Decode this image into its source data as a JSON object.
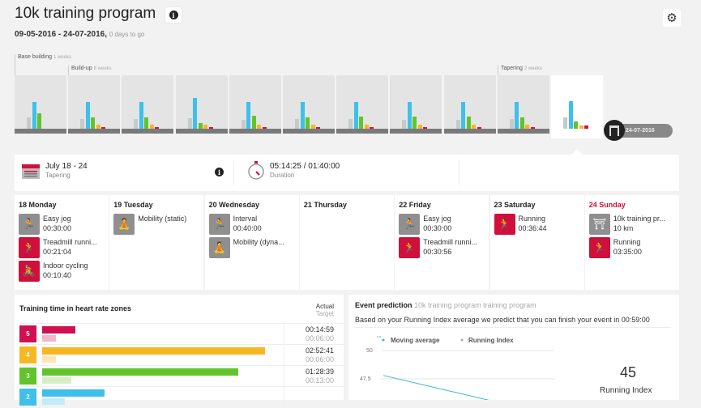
{
  "header": {
    "title": "10k training program",
    "date_range": "09-05-2016 - 24-07-2016,",
    "days_to_go": "0 days to go",
    "info_icon": "info-icon",
    "settings_icon": "gear-icon"
  },
  "phases": [
    {
      "name": "Base building",
      "duration": "1 weeks"
    },
    {
      "name": "Build-up",
      "duration": "8 weeks"
    },
    {
      "name": "Tapering",
      "duration": "2 weeks"
    }
  ],
  "week_chart": {
    "colors": [
      "#c5cacb",
      "#3ec0ea",
      "#62c42a",
      "#f5b722",
      "#d0104f"
    ],
    "weeks": [
      [
        14,
        33,
        19,
        0,
        0
      ],
      [
        12,
        33,
        14,
        5,
        2
      ],
      [
        12,
        33,
        14,
        5,
        2
      ],
      [
        13,
        38,
        7,
        5,
        2
      ],
      [
        11,
        33,
        16,
        5,
        2
      ],
      [
        12,
        33,
        14,
        5,
        2
      ],
      [
        12,
        33,
        15,
        5,
        2
      ],
      [
        11,
        33,
        15,
        5,
        2
      ],
      [
        11,
        33,
        15,
        5,
        2
      ],
      [
        12,
        33,
        14,
        5,
        2
      ],
      [
        14,
        34,
        9,
        4,
        4
      ]
    ],
    "selected_index": 10,
    "event_date": "24-07-2016"
  },
  "week_info": {
    "range": "July 18 - 24",
    "phase": "Tapering",
    "duration": "05:14:25 / 01:40:00",
    "duration_label": "Duration"
  },
  "days": [
    {
      "title": "18 Monday",
      "today": false,
      "activities": [
        {
          "name": "Easy jog",
          "value": "00:30:00",
          "kind": "gray",
          "icon": "run"
        },
        {
          "name": "Treadmill runni...",
          "value": "00:21:04",
          "kind": "red",
          "icon": "treadmill"
        },
        {
          "name": "Indoor cycling",
          "value": "00:10:40",
          "kind": "red",
          "icon": "bike"
        }
      ]
    },
    {
      "title": "19 Tuesday",
      "today": false,
      "activities": [
        {
          "name": "Mobility (static)",
          "value": "",
          "kind": "gray",
          "icon": "mobility"
        }
      ]
    },
    {
      "title": "20 Wednesday",
      "today": false,
      "activities": [
        {
          "name": "Interval",
          "value": "00:40:00",
          "kind": "gray",
          "icon": "run"
        },
        {
          "name": "Mobility (dyna...",
          "value": "",
          "kind": "gray",
          "icon": "mobility"
        }
      ]
    },
    {
      "title": "21 Thursday",
      "today": false,
      "activities": []
    },
    {
      "title": "22 Friday",
      "today": false,
      "activities": [
        {
          "name": "Easy jog",
          "value": "00:30:00",
          "kind": "gray",
          "icon": "run"
        },
        {
          "name": "Treadmill runni...",
          "value": "00:30:56",
          "kind": "red",
          "icon": "treadmill"
        }
      ]
    },
    {
      "title": "23 Saturday",
      "today": false,
      "activities": [
        {
          "name": "Running",
          "value": "00:36:44",
          "kind": "red",
          "icon": "run"
        }
      ]
    },
    {
      "title": "24 Sunday",
      "today": true,
      "activities": [
        {
          "name": "10k training pr...",
          "value": "10 km",
          "kind": "gray",
          "icon": "finish"
        },
        {
          "name": "Running",
          "value": "03:35:00",
          "kind": "red",
          "icon": "run"
        }
      ]
    }
  ],
  "hr_zones": {
    "title": "Training time in heart rate zones",
    "actual_label": "Actual",
    "target_label": "Target",
    "zones": [
      {
        "zone": "5",
        "color": "#d0104f",
        "light": "#f2b6cb",
        "actual": "00:14:59",
        "target": "00:06:00",
        "actual_pct": 15,
        "target_pct": 6
      },
      {
        "zone": "4",
        "color": "#f5b722",
        "light": "#fbe6b4",
        "actual": "02:52:41",
        "target": "00:06:00",
        "actual_pct": 100,
        "target_pct": 6
      },
      {
        "zone": "3",
        "color": "#62c42a",
        "light": "#d4efc5",
        "actual": "01:28:39",
        "target": "00:13:00",
        "actual_pct": 88,
        "target_pct": 13
      },
      {
        "zone": "2",
        "color": "#3ec0ea",
        "light": "#c4ebf8",
        "actual": "",
        "target": "",
        "actual_pct": 28,
        "target_pct": 10
      }
    ]
  },
  "event_prediction": {
    "title": "Event prediction",
    "subtitle": "10k training program training program",
    "text": "Based on your Running Index average we predict that you can finish your event in 00:59:00",
    "running_index": "45",
    "running_index_label": "Running Index",
    "chart_data": {
      "type": "line",
      "legend": [
        "Moving average",
        "Running Index"
      ],
      "yticks": [
        "50",
        "47.5"
      ],
      "ylim": [
        45,
        50
      ],
      "series": [
        {
          "name": "Moving average",
          "values": [
            47.8,
            45.0
          ]
        }
      ],
      "color": "#3ab8c9"
    }
  }
}
